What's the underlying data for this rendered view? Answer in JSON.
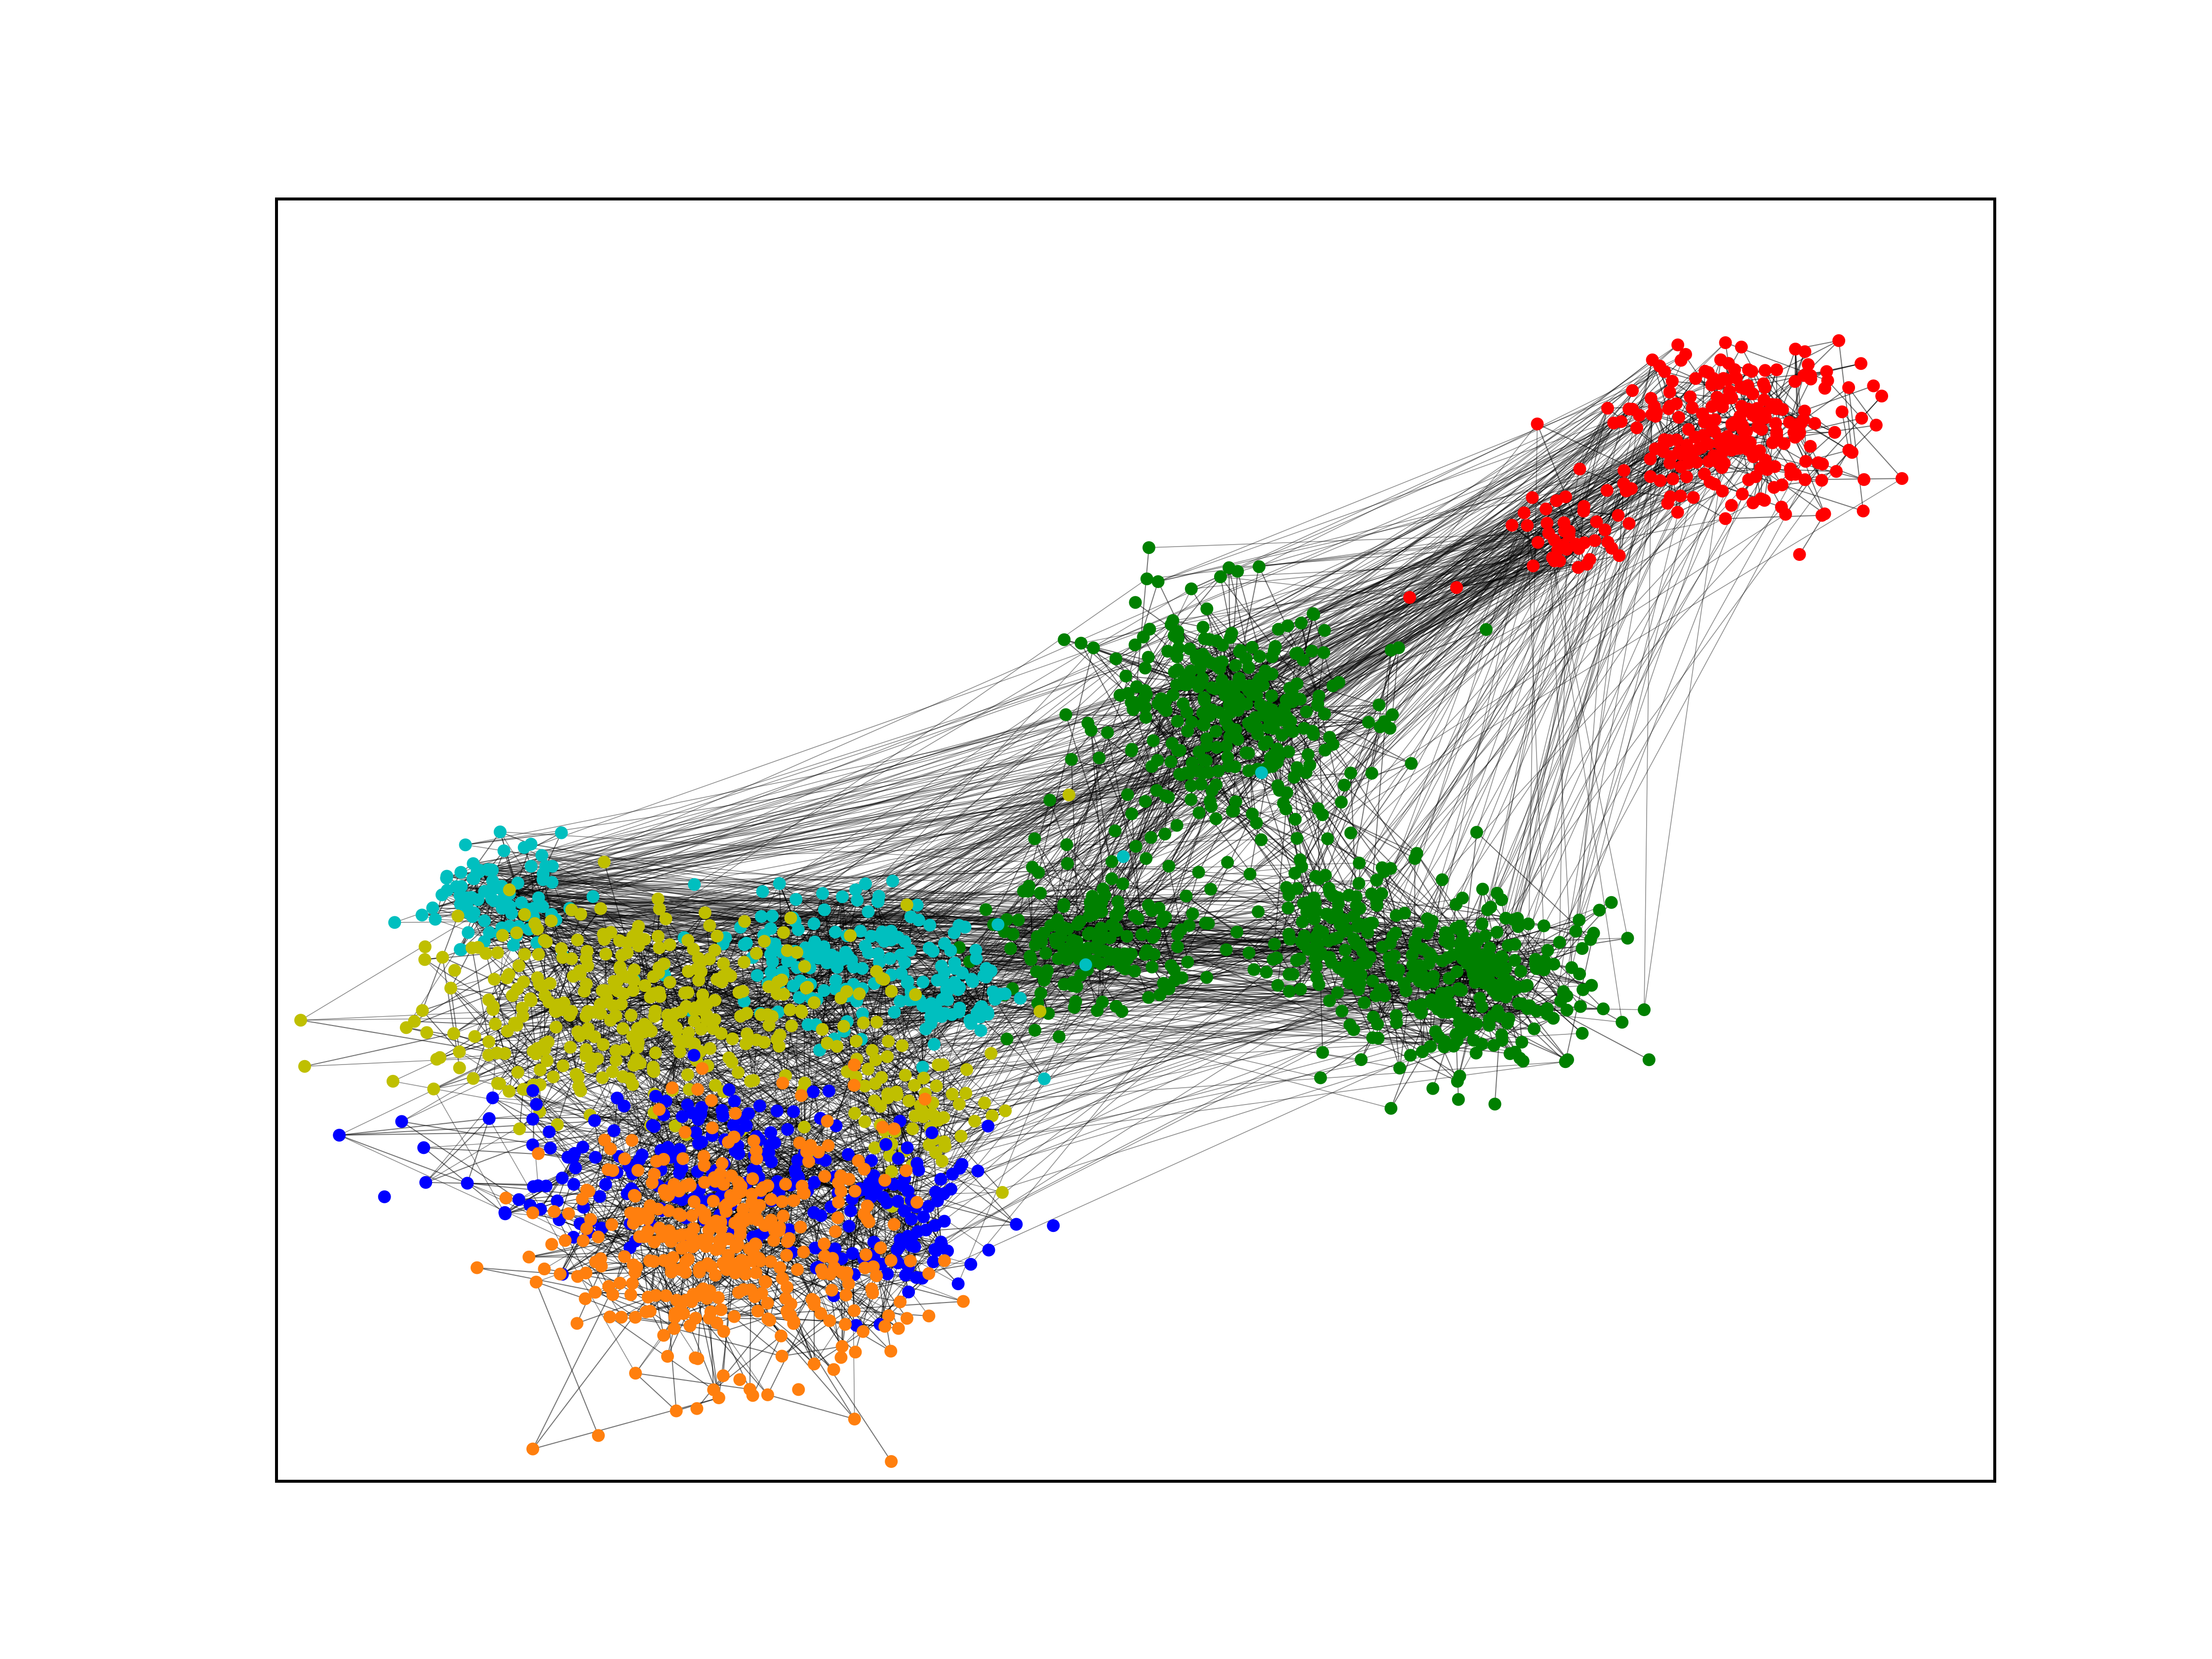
{
  "figure": {
    "background": "#ffffff",
    "frame_color": "#000000"
  },
  "communities": [
    {
      "name": "red",
      "color": "#ff0000"
    },
    {
      "name": "green",
      "color": "#008000"
    },
    {
      "name": "cyan",
      "color": "#00bfbf"
    },
    {
      "name": "olive",
      "color": "#bfbf00"
    },
    {
      "name": "blue",
      "color": "#0000ff"
    },
    {
      "name": "orange",
      "color": "#ff7f0e"
    }
  ],
  "edges": {
    "color": "#000000"
  }
}
